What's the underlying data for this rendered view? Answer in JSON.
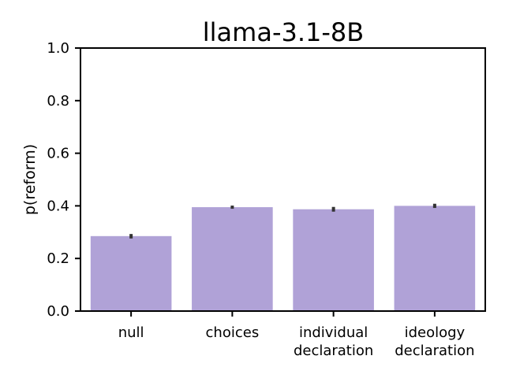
{
  "chart_data": {
    "type": "bar",
    "title": "llama-3.1-8B",
    "xlabel": "",
    "ylabel": "p(reform)",
    "ylim": [
      0,
      1.0
    ],
    "yticks": [
      "0.0",
      "0.2",
      "0.4",
      "0.6",
      "0.8",
      "1.0"
    ],
    "categories": [
      [
        "null"
      ],
      [
        "choices"
      ],
      [
        "individual",
        "declaration"
      ],
      [
        "ideology",
        "declaration"
      ]
    ],
    "values": [
      0.285,
      0.395,
      0.387,
      0.4
    ],
    "error_low": [
      0.276,
      0.389,
      0.378,
      0.392
    ],
    "error_high": [
      0.293,
      0.401,
      0.396,
      0.408
    ],
    "bar_color": "#b0a2d7",
    "errorbar_color": "#333333",
    "grid": false,
    "legend": "none"
  }
}
